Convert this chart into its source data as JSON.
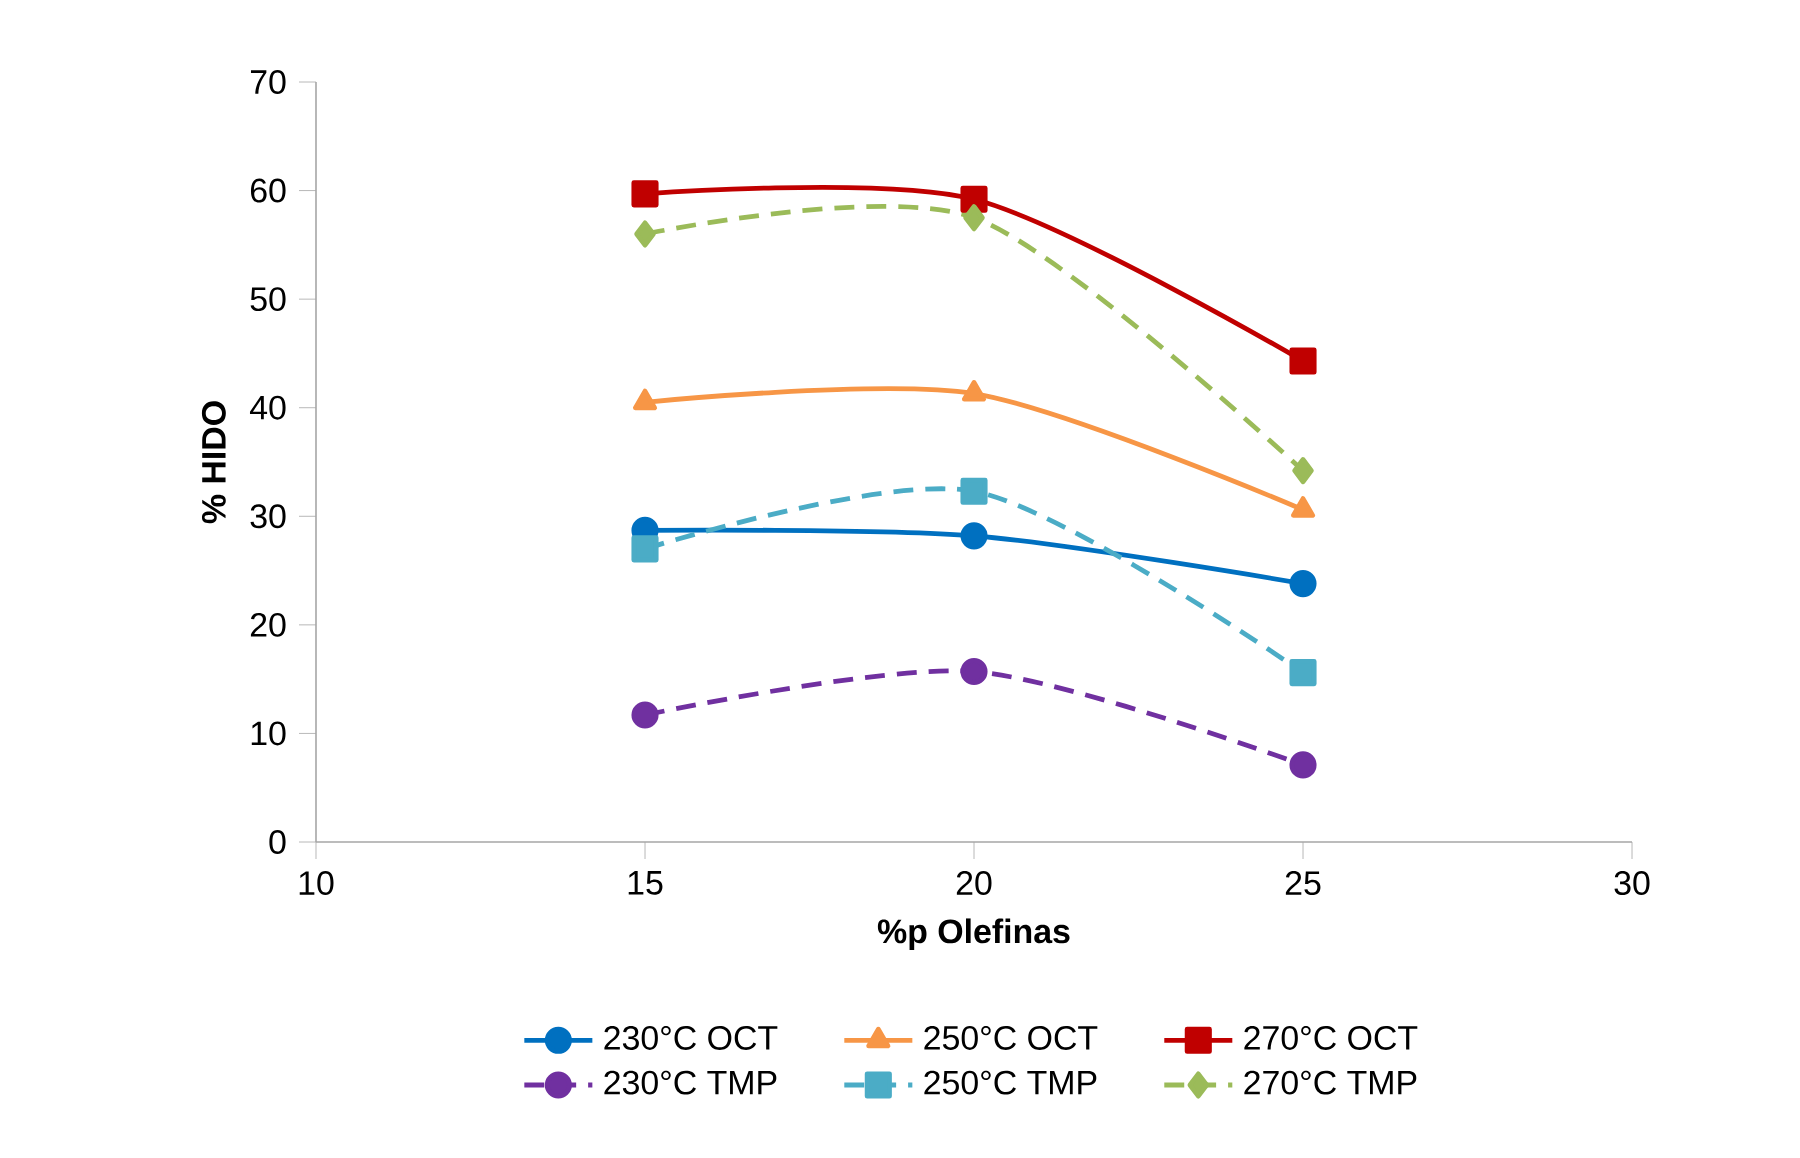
{
  "chart_data": {
    "type": "line",
    "xlabel": "%p Olefinas",
    "ylabel": "% HIDO",
    "x": [
      15,
      20,
      25
    ],
    "xlim": [
      10,
      30
    ],
    "xticks": [
      10,
      15,
      20,
      25,
      30
    ],
    "ylim": [
      0,
      70
    ],
    "yticks": [
      0,
      10,
      20,
      30,
      40,
      50,
      60,
      70
    ],
    "grid": false,
    "legend": "bottom",
    "series": [
      {
        "name": "230°C OCT",
        "color": "#0070c0",
        "marker": "circle",
        "line_style": "solid",
        "values": [
          28.7,
          28.2,
          23.8
        ]
      },
      {
        "name": "250°C OCT",
        "color": "#f79646",
        "marker": "triangle",
        "line_style": "solid",
        "values": [
          40.5,
          41.3,
          30.6
        ]
      },
      {
        "name": "270°C OCT",
        "color": "#c00000",
        "marker": "square",
        "line_style": "solid",
        "values": [
          59.7,
          59.2,
          44.3
        ]
      },
      {
        "name": "230°C TMP",
        "color": "#7030a0",
        "marker": "circle",
        "line_style": "dashed",
        "values": [
          11.7,
          15.7,
          7.1
        ]
      },
      {
        "name": "250°C TMP",
        "color": "#4bacc6",
        "marker": "square",
        "line_style": "dashed",
        "values": [
          27.0,
          32.3,
          15.6
        ]
      },
      {
        "name": "270°C TMP",
        "color": "#9bbb59",
        "marker": "diamond",
        "line_style": "dashed",
        "values": [
          56.0,
          57.5,
          34.2
        ]
      }
    ]
  }
}
